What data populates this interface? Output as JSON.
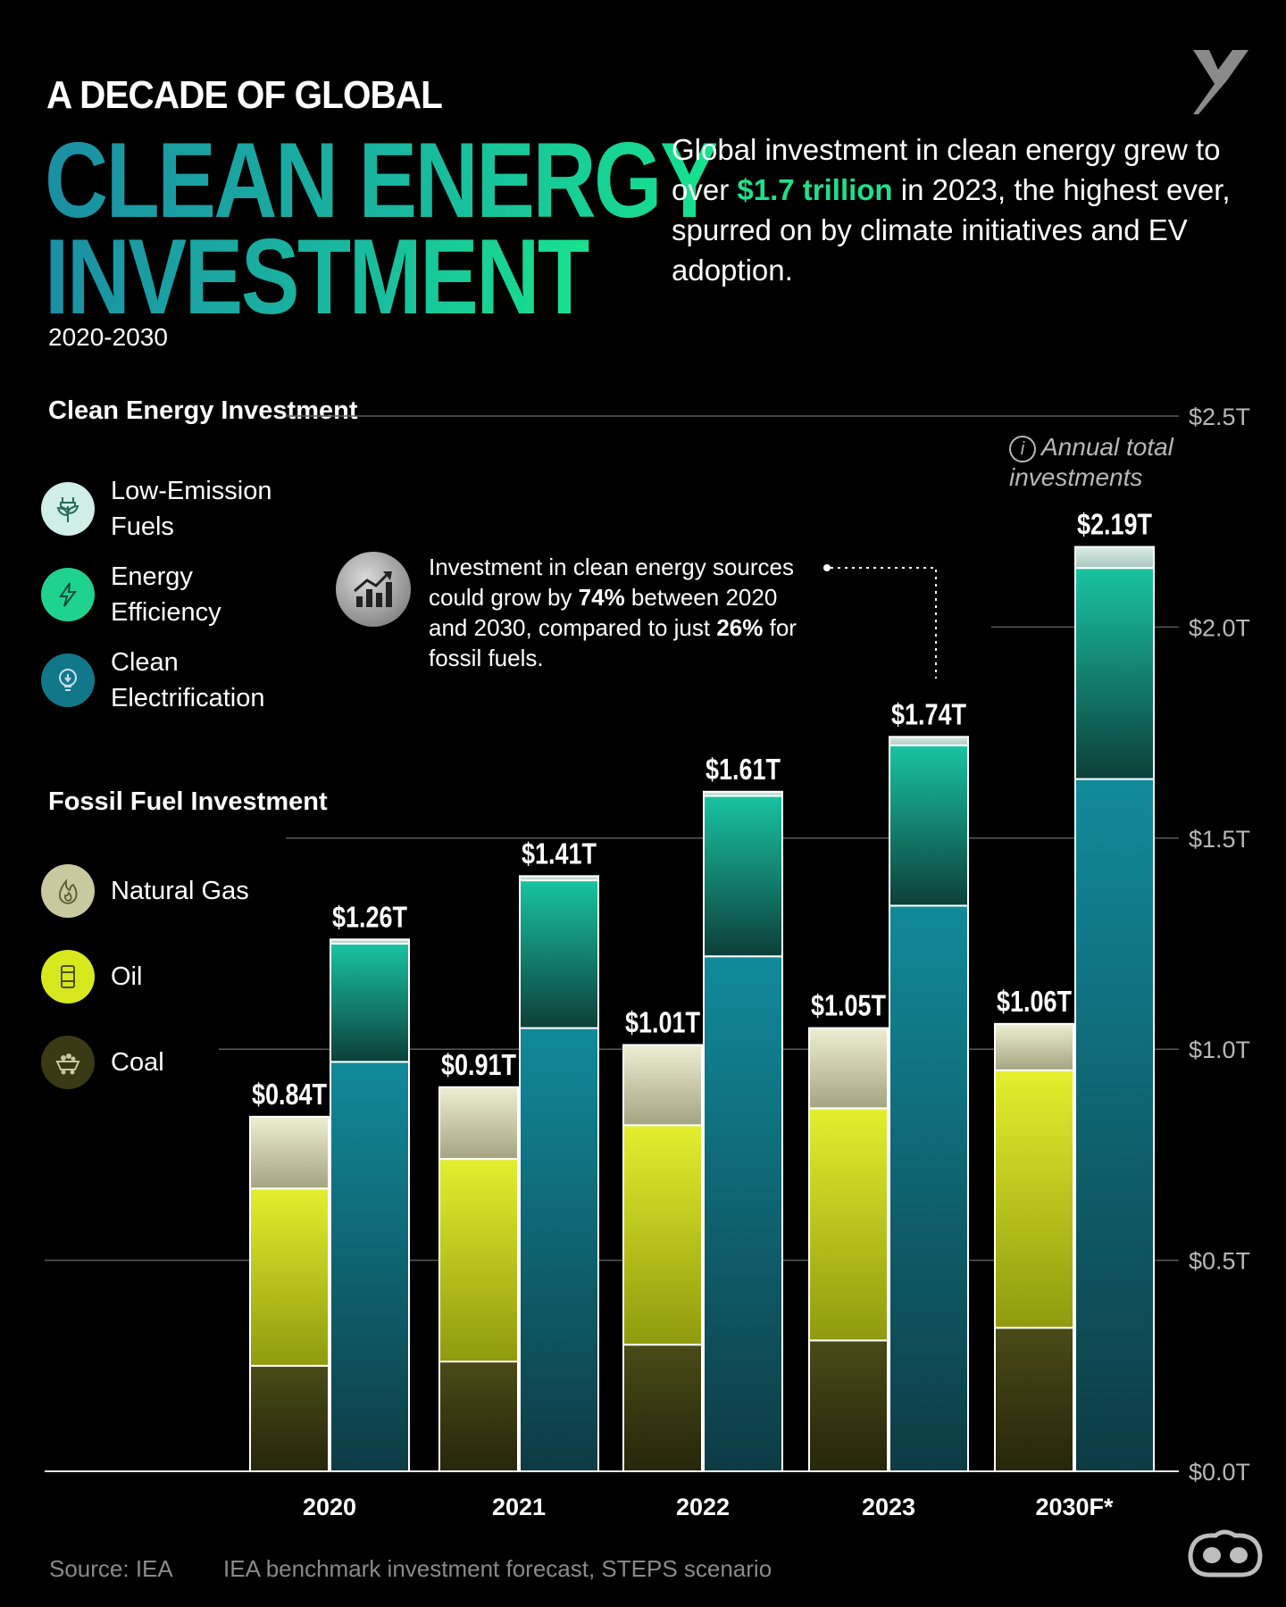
{
  "header": {
    "kicker": "A DECADE OF GLOBAL",
    "title_line1": "CLEAN ENERGY",
    "title_line2": "INVESTMENT",
    "years": "2020-2030",
    "description_pre": "Global investment in clean energy grew to over ",
    "description_highlight": "$1.7 trillion",
    "description_post": " in 2023, the highest ever, spurred on by climate initiatives and EV adoption."
  },
  "legend": {
    "clean_heading": "Clean Energy Investment",
    "clean_items": [
      {
        "label": "Low-Emission Fuels",
        "icon": "plant-plug-icon",
        "color": "#cfeee6"
      },
      {
        "label": "Energy Efficiency",
        "icon": "lightning-icon",
        "color": "#1fd38f"
      },
      {
        "label": "Clean Electrification",
        "icon": "lightbulb-icon",
        "color": "#11788a"
      }
    ],
    "fossil_heading": "Fossil Fuel Investment",
    "fossil_items": [
      {
        "label": "Natural Gas",
        "icon": "flame-icon",
        "color": "#c9c9a0"
      },
      {
        "label": "Oil",
        "icon": "oil-barrel-icon",
        "color": "#d8e81f"
      },
      {
        "label": "Coal",
        "icon": "coal-cart-icon",
        "color": "#4a4a18"
      }
    ]
  },
  "annotation": {
    "pre": "Investment in clean energy sources could grow by ",
    "pct1": "74%",
    "mid": " between 2020 and 2030, compared to just ",
    "pct2": "26%",
    "post": " for fossil fuels."
  },
  "annual_note": "Annual total investments",
  "source": "Source: IEA",
  "footnote": "IEA benchmark investment forecast, STEPS scenario",
  "colors": {
    "background": "#000000",
    "accent": "#1fe08a",
    "low_emission": "#cfeee6",
    "efficiency": "#16b89a",
    "electrification": "#0f8395",
    "gas": "#c9c9a0",
    "oil": "#c8d81a",
    "coal": "#3d3d12"
  },
  "chart_data": {
    "type": "bar",
    "stacked": true,
    "grouped": true,
    "categories": [
      "2020",
      "2021",
      "2022",
      "2023",
      "2030F*"
    ],
    "ylim": [
      0,
      2.5
    ],
    "yticks": [
      "$0.0T",
      "$0.5T",
      "$1.0T",
      "$1.5T",
      "$2.0T",
      "$2.5T"
    ],
    "fossil": {
      "totals": [
        0.84,
        0.91,
        1.01,
        1.05,
        1.06
      ],
      "total_labels": [
        "$0.84T",
        "$0.91T",
        "$1.01T",
        "$1.05T",
        "$1.06T"
      ],
      "series": [
        {
          "name": "Coal",
          "values": [
            0.25,
            0.26,
            0.3,
            0.31,
            0.34
          ]
        },
        {
          "name": "Oil",
          "values": [
            0.42,
            0.48,
            0.52,
            0.55,
            0.61
          ]
        },
        {
          "name": "Natural Gas",
          "values": [
            0.17,
            0.17,
            0.19,
            0.19,
            0.11
          ]
        }
      ]
    },
    "clean": {
      "totals": [
        1.26,
        1.41,
        1.61,
        1.74,
        2.19
      ],
      "total_labels": [
        "$1.26T",
        "$1.41T",
        "$1.61T",
        "$1.74T",
        "$2.19T"
      ],
      "series": [
        {
          "name": "Clean Electrification",
          "values": [
            0.97,
            1.05,
            1.22,
            1.34,
            1.64
          ]
        },
        {
          "name": "Energy Efficiency",
          "values": [
            0.28,
            0.35,
            0.38,
            0.38,
            0.5
          ]
        },
        {
          "name": "Low-Emission Fuels",
          "values": [
            0.01,
            0.01,
            0.01,
            0.02,
            0.05
          ]
        }
      ]
    }
  }
}
